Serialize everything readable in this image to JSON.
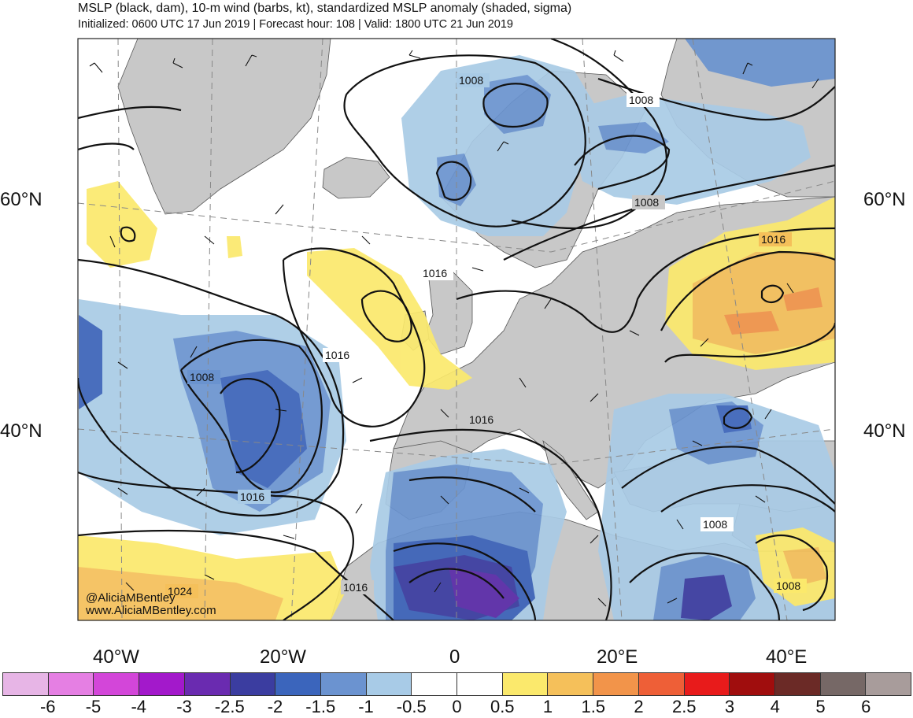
{
  "header": {
    "title": "MSLP (black, dam), 10-m wind (barbs, kt), standardized MSLP anomaly (shaded, sigma)",
    "subtitle": "Initialized: 0600 UTC 17 Jun 2019 | Forecast hour: 108 | Valid: 1800 UTC 21 Jun 2019"
  },
  "map": {
    "lat_labels": [
      "60°N",
      "40°N"
    ],
    "lon_labels": [
      "40°W",
      "20°W",
      "0",
      "20°E",
      "40°E"
    ],
    "contour_labels": [
      "1008",
      "1008",
      "1008",
      "1016",
      "1016",
      "1008",
      "1016",
      "1016",
      "1016",
      "1024",
      "1016",
      "1008",
      "1008"
    ],
    "colors": {
      "land": "#c8c8c8",
      "ocean": "#ffffff",
      "anom_neg_05": "#a9cbe6",
      "anom_neg_10": "#6a93cf",
      "anom_neg_15": "#3a62b8",
      "anom_neg_20": "#3a3ca0",
      "anom_neg_25": "#5a2aa8",
      "anom_pos_05": "#fbe96c",
      "anom_pos_10": "#f5c05a",
      "anom_pos_15": "#f2944a"
    }
  },
  "credit": {
    "handle": "@AliciaMBentley",
    "site": "www.AliciaMBentley.com"
  },
  "colorbar": {
    "colors": [
      "#e7b5e6",
      "#e57fe3",
      "#d346d9",
      "#a319cb",
      "#6a2bb0",
      "#3b3da0",
      "#3b65bc",
      "#6b93d0",
      "#a8cbe7",
      "#ffffff",
      "#ffffff",
      "#fbe96c",
      "#f5c05a",
      "#f2944a",
      "#ee5f37",
      "#e81b1b",
      "#a00d0d",
      "#6b2a26",
      "#766866",
      "#a89c9b"
    ],
    "ticks": [
      "-6",
      "-5",
      "-4",
      "-3",
      "-2.5",
      "-2",
      "-1.5",
      "-1",
      "-0.5",
      "0",
      "0.5",
      "1",
      "1.5",
      "2",
      "2.5",
      "3",
      "4",
      "5",
      "6"
    ]
  }
}
